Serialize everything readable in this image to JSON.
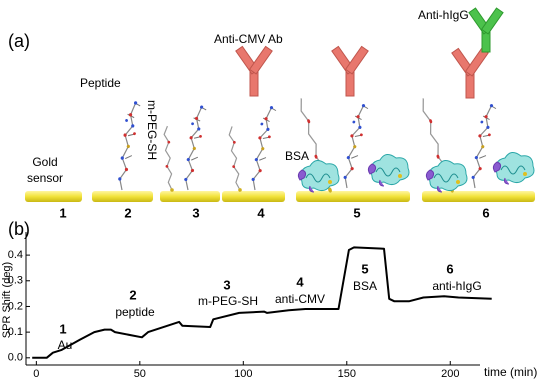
{
  "diagram": {
    "label": "(a)",
    "sensor_label": [
      "Gold",
      "sensor"
    ],
    "steps": [
      "1",
      "2",
      "3",
      "4",
      "5",
      "6"
    ],
    "peptide_label": "Peptide",
    "peg_label": "m-PEG-SH",
    "antibody_label": "Anti-CMV Ab",
    "bsa_label": "BSA",
    "anti_higg_label": "Anti-hIgG"
  },
  "chart_data": {
    "type": "line",
    "panel_label": "(b)",
    "x_label": "time (min)",
    "y_label": "SPR Shift (deg)",
    "x": [
      -2,
      5,
      8,
      12,
      21,
      28,
      33,
      36,
      38,
      51,
      54,
      69,
      70.5,
      84,
      85.5,
      98,
      110,
      111.5,
      122,
      130,
      146,
      151,
      153.5,
      168,
      170.5,
      173,
      180,
      187,
      197,
      204,
      220
    ],
    "values": [
      0,
      0,
      0.02,
      0.03,
      0.07,
      0.1,
      0.11,
      0.11,
      0.1,
      0.08,
      0.1,
      0.14,
      0.125,
      0.12,
      0.15,
      0.175,
      0.18,
      0.175,
      0.185,
      0.19,
      0.19,
      0.42,
      0.43,
      0.425,
      0.23,
      0.22,
      0.22,
      0.235,
      0.24,
      0.235,
      0.23
    ],
    "color": "#000000",
    "xlim": [
      -5,
      225
    ],
    "ylim": [
      -0.028,
      0.49
    ],
    "xticks": [
      0,
      50,
      100,
      150,
      200
    ],
    "yticks": [
      {
        "value": 0,
        "label": "0.0"
      },
      0.1,
      0.2,
      0.3,
      0.4
    ],
    "annotations": [
      {
        "step": "1",
        "label": "Au"
      },
      {
        "step": "2",
        "label": "peptide"
      },
      {
        "step": "3",
        "label": "m-PEG-SH"
      },
      {
        "step": "4",
        "label": "anti-CMV"
      },
      {
        "step": "5",
        "label": "BSA"
      },
      {
        "step": "6",
        "label": "anti-hIgG"
      }
    ]
  }
}
